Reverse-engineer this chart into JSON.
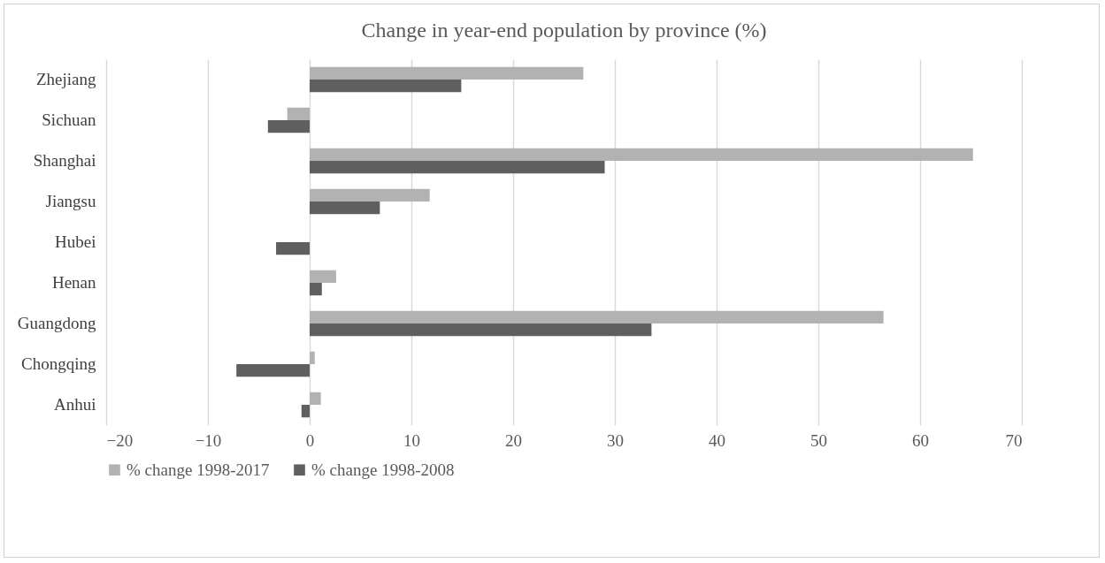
{
  "chart_data": {
    "type": "bar",
    "orientation": "horizontal",
    "title": "Change in year-end population by province (%)",
    "categories": [
      "Zhejiang",
      "Sichuan",
      "Shanghai",
      "Jiangsu",
      "Hubei",
      "Henan",
      "Guangdong",
      "Chongqing",
      "Anhui"
    ],
    "series": [
      {
        "name": "% change 1998-2017",
        "color": "#b2b2b2",
        "values": [
          26.9,
          -2.2,
          65.2,
          11.8,
          0,
          2.6,
          56.4,
          0.5,
          1.1
        ]
      },
      {
        "name": "% change 1998-2008",
        "color": "#5f5f5f",
        "values": [
          14.9,
          -4.1,
          29.0,
          6.9,
          -3.3,
          1.2,
          33.6,
          -7.2,
          -0.8
        ]
      }
    ],
    "xlim": [
      -20,
      70
    ],
    "xticks": [
      -20,
      -10,
      0,
      10,
      20,
      30,
      40,
      50,
      60,
      70
    ],
    "grid": "x",
    "legend": "bottom"
  }
}
